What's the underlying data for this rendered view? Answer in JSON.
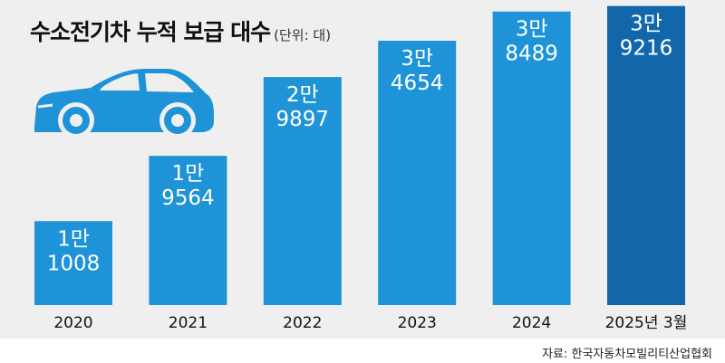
{
  "header": {
    "title": "수소전기차 누적 보급 대수",
    "unit": "(단위: 대)"
  },
  "footer": {
    "source": "자료: 한국자동차모빌리티산업협회"
  },
  "colors": {
    "bar": "#1e93d8",
    "bar_highlight": "#1167a9",
    "car": "#1e93d8",
    "panel_bg": "#efefef"
  },
  "chart_data": {
    "type": "bar",
    "title": "수소전기차 누적 보급 대수",
    "unit": "(단위: 대)",
    "categories": [
      "2020",
      "2021",
      "2022",
      "2023",
      "2024",
      "2025년 3월"
    ],
    "values": [
      11008,
      19564,
      29897,
      34654,
      38489,
      39216
    ],
    "data_labels": [
      [
        "1만",
        "1008"
      ],
      [
        "1만",
        "9564"
      ],
      [
        "2만",
        "9897"
      ],
      [
        "3만",
        "4654"
      ],
      [
        "3만",
        "8489"
      ],
      [
        "3만",
        "9216"
      ]
    ],
    "highlight_index": 5,
    "ylim": [
      0,
      40000
    ],
    "grid": false,
    "legend": "none"
  }
}
